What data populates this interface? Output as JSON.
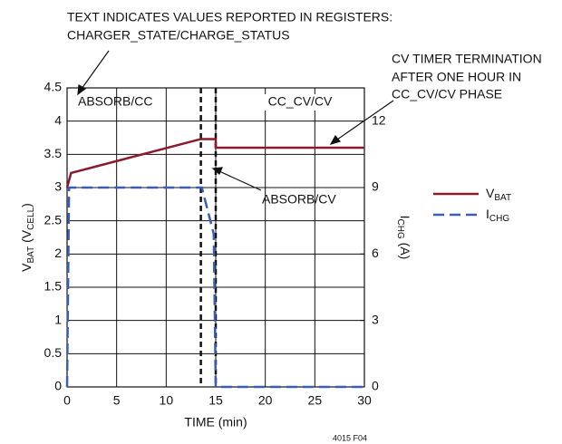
{
  "chart_data": {
    "type": "line",
    "notes": [
      "TEXT INDICATES VALUES REPORTED IN REGISTERS:",
      "CHARGER_STATE/CHARGE_STATUS"
    ],
    "annotations": [
      "ABSORB/CC",
      "CC_CV/CV",
      "ABSORB/CV",
      "CV TIMER TERMINATION",
      "AFTER ONE HOUR IN",
      "CC_CV/CV PHASE"
    ],
    "figure_id": "4015 F04",
    "xlabel": "TIME (min)",
    "ylabel_parts": [
      "V",
      "BAT",
      " (V",
      "CELL",
      ")"
    ],
    "y2label_parts": [
      "I",
      "CHG",
      " (A)"
    ],
    "xlim": [
      0,
      30
    ],
    "xticks": [
      0,
      5,
      10,
      15,
      20,
      25,
      30
    ],
    "ylim": [
      0,
      4.5
    ],
    "yticks": [
      0,
      0.5,
      1.0,
      1.5,
      2.0,
      2.5,
      3.0,
      3.5,
      4.0,
      4.5
    ],
    "y2lim": [
      0,
      13.5
    ],
    "y2ticks": [
      0,
      3,
      6,
      9,
      12
    ],
    "phase_boundaries": [
      13.5,
      15
    ],
    "grid": true,
    "legend": "right",
    "series": [
      {
        "name": "VBAT",
        "color": "#8b1a2e",
        "x": [
          0,
          0.4,
          13.5,
          15,
          15,
          30
        ],
        "values": [
          3.0,
          3.22,
          3.73,
          3.73,
          3.6,
          3.6
        ]
      },
      {
        "name": "ICHG",
        "color": "#3a5fb0",
        "axis": "y2",
        "x": [
          0,
          0.2,
          13.6,
          14.8,
          15,
          30
        ],
        "values": [
          0,
          9,
          9,
          6.9,
          0,
          0
        ]
      }
    ]
  }
}
